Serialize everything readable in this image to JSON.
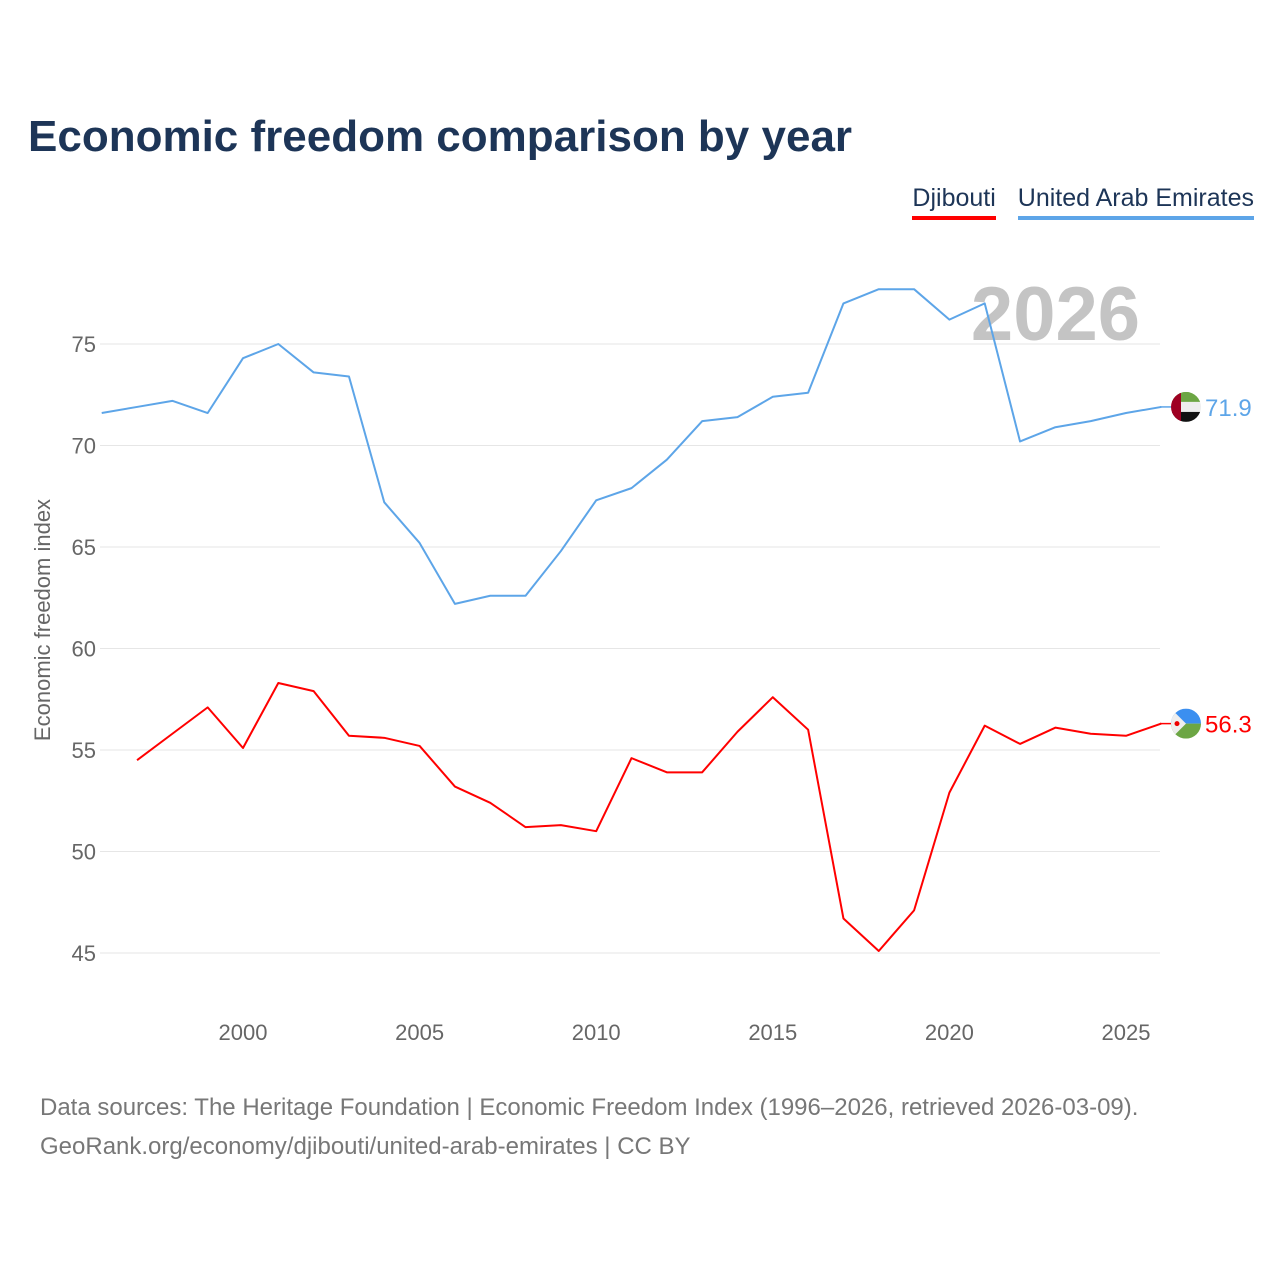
{
  "chart_data": {
    "type": "line",
    "title": "Economic freedom comparison by year",
    "xlabel": "",
    "ylabel": "Economic freedom index",
    "xlim": [
      1996,
      2026
    ],
    "ylim": [
      42,
      80
    ],
    "x_ticks": [
      2000,
      2005,
      2010,
      2015,
      2020,
      2025
    ],
    "y_ticks": [
      45,
      50,
      55,
      60,
      65,
      70,
      75
    ],
    "grid": true,
    "legend_position": "top-right",
    "watermark_year": "2026",
    "series": [
      {
        "name": "Djibouti",
        "color": "#ff0000",
        "end_label": "56.3",
        "x": [
          1997,
          1998,
          1999,
          2000,
          2001,
          2002,
          2003,
          2004,
          2005,
          2006,
          2007,
          2008,
          2009,
          2010,
          2011,
          2012,
          2013,
          2014,
          2015,
          2016,
          2017,
          2018,
          2019,
          2020,
          2021,
          2022,
          2023,
          2024,
          2025,
          2026
        ],
        "values": [
          54.5,
          55.8,
          57.1,
          55.1,
          58.3,
          57.9,
          55.7,
          55.6,
          55.2,
          53.2,
          52.4,
          51.2,
          51.3,
          51.0,
          54.6,
          53.9,
          53.9,
          55.9,
          57.6,
          56.0,
          46.7,
          45.1,
          47.1,
          52.9,
          56.2,
          55.3,
          56.1,
          55.8,
          55.7,
          56.3
        ]
      },
      {
        "name": "United Arab Emirates",
        "color": "#5da5e8",
        "end_label": "71.9",
        "x": [
          1996,
          1997,
          1998,
          1999,
          2000,
          2001,
          2002,
          2003,
          2004,
          2005,
          2006,
          2007,
          2008,
          2009,
          2010,
          2011,
          2012,
          2013,
          2014,
          2015,
          2016,
          2017,
          2018,
          2019,
          2020,
          2021,
          2022,
          2023,
          2024,
          2025,
          2026
        ],
        "values": [
          71.6,
          71.9,
          72.2,
          71.6,
          74.3,
          75.0,
          73.6,
          73.4,
          67.2,
          65.2,
          62.2,
          62.6,
          62.6,
          64.8,
          67.3,
          67.9,
          69.3,
          71.2,
          71.4,
          72.4,
          72.6,
          77.0,
          77.7,
          77.7,
          76.2,
          77.0,
          70.2,
          70.9,
          71.2,
          71.6,
          71.9
        ]
      }
    ]
  },
  "footer": {
    "line1": "Data sources: The Heritage Foundation | Economic Freedom Index (1996–2026, retrieved 2026-03-09).",
    "line2": "GeoRank.org/economy/djibouti/united-arab-emirates | CC BY"
  }
}
